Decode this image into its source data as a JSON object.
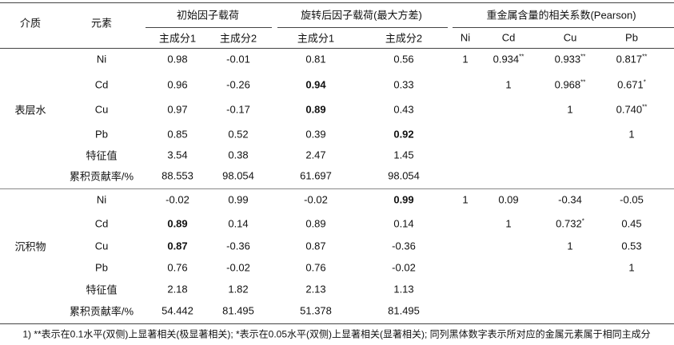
{
  "table": {
    "header": {
      "medium": "介质",
      "element": "元素",
      "groups": [
        "初始因子载荷",
        "旋转后因子载荷(最大方差)",
        "重金属含量的相关系数(Pearson)"
      ],
      "sub": [
        "主成分1",
        "主成分2",
        "主成分1",
        "主成分2",
        "Ni",
        "Cd",
        "Cu",
        "Pb"
      ]
    },
    "sections": [
      {
        "medium": "表层水",
        "rows": [
          {
            "element": "Ni",
            "cells": [
              "0.98",
              "-0.01",
              "0.81",
              "0.56",
              "1",
              {
                "text": "0.934",
                "sup": "**"
              },
              {
                "text": "0.933",
                "sup": "**"
              },
              {
                "text": "0.817",
                "sup": "**"
              }
            ]
          },
          {
            "element": "Cd",
            "cells": [
              "0.96",
              "-0.26",
              {
                "text": "0.94",
                "bold": true
              },
              "0.33",
              null,
              "1",
              {
                "text": "0.968",
                "sup": "**"
              },
              {
                "text": "0.671",
                "sup": "*"
              }
            ]
          },
          {
            "element": "Cu",
            "cells": [
              "0.97",
              "-0.17",
              {
                "text": "0.89",
                "bold": true
              },
              "0.43",
              null,
              null,
              "1",
              {
                "text": "0.740",
                "sup": "**"
              }
            ]
          },
          {
            "element": "Pb",
            "cells": [
              "0.85",
              "0.52",
              "0.39",
              {
                "text": "0.92",
                "bold": true
              },
              null,
              null,
              null,
              "1"
            ]
          },
          {
            "element": "特征值",
            "cells": [
              "3.54",
              "0.38",
              "2.47",
              "1.45"
            ]
          },
          {
            "element": "累积贡献率/%",
            "cells": [
              "88.553",
              "98.054",
              "61.697",
              "98.054"
            ]
          }
        ]
      },
      {
        "medium": "沉积物",
        "rows": [
          {
            "element": "Ni",
            "cells": [
              "-0.02",
              "0.99",
              "-0.02",
              {
                "text": "0.99",
                "bold": true
              },
              "1",
              "0.09",
              "-0.34",
              "-0.05"
            ]
          },
          {
            "element": "Cd",
            "cells": [
              {
                "text": "0.89",
                "bold": true
              },
              "0.14",
              "0.89",
              "0.14",
              null,
              "1",
              {
                "text": "0.732",
                "sup": "*"
              },
              "0.45"
            ]
          },
          {
            "element": "Cu",
            "cells": [
              {
                "text": "0.87",
                "bold": true
              },
              "-0.36",
              "0.87",
              "-0.36",
              null,
              null,
              "1",
              "0.53"
            ]
          },
          {
            "element": "Pb",
            "cells": [
              "0.76",
              "-0.02",
              "0.76",
              "-0.02",
              null,
              null,
              null,
              "1"
            ]
          },
          {
            "element": "特征值",
            "cells": [
              "2.18",
              "1.82",
              "2.13",
              "1.13"
            ]
          },
          {
            "element": "累积贡献率/%",
            "cells": [
              "54.442",
              "81.495",
              "51.378",
              "81.495"
            ]
          }
        ]
      }
    ]
  },
  "footnote": "1) **表示在0.1水平(双侧)上显著相关(极显著相关); *表示在0.05水平(双侧)上显著相关(显著相关); 同列黑体数字表示所对应的金属元素属于相同主成分"
}
